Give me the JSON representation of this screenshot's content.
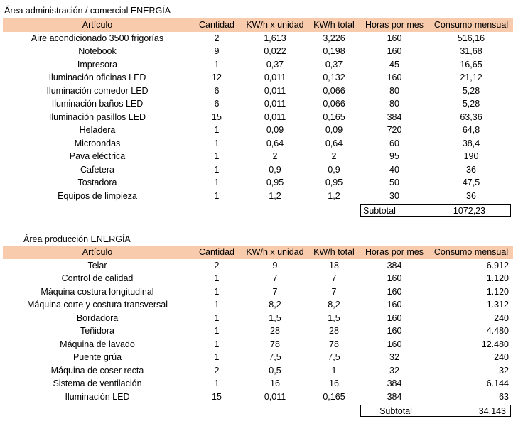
{
  "section1": {
    "title": "Área administración / comercial ENERGÍA",
    "headers": [
      "Artículo",
      "Cantidad",
      "KW/h x unidad",
      "KW/h total",
      "Horas por mes",
      "Consumo mensual"
    ],
    "rows": [
      [
        "Aire acondicionado 3500 frigorías",
        "2",
        "1,613",
        "3,226",
        "160",
        "516,16"
      ],
      [
        "Notebook",
        "9",
        "0,022",
        "0,198",
        "160",
        "31,68"
      ],
      [
        "Impresora",
        "1",
        "0,37",
        "0,37",
        "45",
        "16,65"
      ],
      [
        "Iluminación oficinas LED",
        "12",
        "0,011",
        "0,132",
        "160",
        "21,12"
      ],
      [
        "Iluminación comedor LED",
        "6",
        "0,011",
        "0,066",
        "80",
        "5,28"
      ],
      [
        "Iluminación baños LED",
        "6",
        "0,011",
        "0,066",
        "80",
        "5,28"
      ],
      [
        "Iluminación pasillos LED",
        "15",
        "0,011",
        "0,165",
        "384",
        "63,36"
      ],
      [
        "Heladera",
        "1",
        "0,09",
        "0,09",
        "720",
        "64,8"
      ],
      [
        "Microondas",
        "1",
        "0,64",
        "0,64",
        "60",
        "38,4"
      ],
      [
        "Pava eléctrica",
        "1",
        "2",
        "2",
        "95",
        "190"
      ],
      [
        "Cafetera",
        "1",
        "0,9",
        "0,9",
        "40",
        "36"
      ],
      [
        "Tostadora",
        "1",
        "0,95",
        "0,95",
        "50",
        "47,5"
      ],
      [
        "Equipos de limpieza",
        "1",
        "1,2",
        "1,2",
        "30",
        "36"
      ]
    ],
    "subtotal_label": "Subtotal",
    "subtotal_value": "1072,23"
  },
  "section2": {
    "title": "Área producción ENERGÍA",
    "headers": [
      "Artículo",
      "Cantidad",
      "KW/h x unidad",
      "KW/h total",
      "Horas por mes",
      "Consumo mensual"
    ],
    "rows": [
      [
        "Telar",
        "2",
        "9",
        "18",
        "384",
        "6.912"
      ],
      [
        "Control de calidad",
        "1",
        "7",
        "7",
        "160",
        "1.120"
      ],
      [
        "Máquina costura longitudinal",
        "1",
        "7",
        "7",
        "160",
        "1.120"
      ],
      [
        "Máquina corte y costura transversal",
        "1",
        "8,2",
        "8,2",
        "160",
        "1.312"
      ],
      [
        "Bordadora",
        "1",
        "1,5",
        "1,5",
        "160",
        "240"
      ],
      [
        "Teñidora",
        "1",
        "28",
        "28",
        "160",
        "4.480"
      ],
      [
        "Máquina de lavado",
        "1",
        "78",
        "78",
        "160",
        "12.480"
      ],
      [
        "Puente grúa",
        "1",
        "7,5",
        "7,5",
        "32",
        "240"
      ],
      [
        "Máquina de coser recta",
        "2",
        "0,5",
        "1",
        "32",
        "32"
      ],
      [
        "Sistema de ventilación",
        "1",
        "16",
        "16",
        "384",
        "6.144"
      ],
      [
        "Iluminación LED",
        "15",
        "0,011",
        "0,165",
        "384",
        "63"
      ]
    ],
    "subtotal_label": "Subtotal",
    "subtotal_value": "34.143"
  }
}
